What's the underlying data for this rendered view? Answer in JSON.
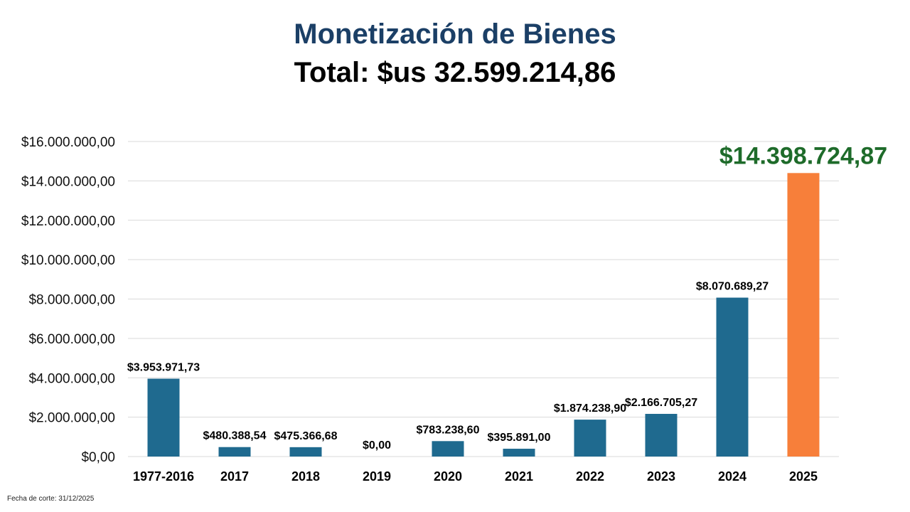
{
  "title": "Monetización de Bienes",
  "subtitle": "Total: $us 32.599.214,86",
  "footnote": "Fecha de corte: 31/12/2025",
  "chart_data": {
    "type": "bar",
    "categories": [
      "1977-2016",
      "2017",
      "2018",
      "2019",
      "2020",
      "2021",
      "2022",
      "2023",
      "2024",
      "2025"
    ],
    "values": [
      3953971.73,
      480388.54,
      475366.68,
      0,
      783238.6,
      395891.0,
      1874238.9,
      2166705.27,
      8070689.27,
      14398724.87
    ],
    "data_labels": [
      "$3.953.971,73",
      "$480.388,54",
      "$475.366,68",
      "$0,00",
      "$783.238,60",
      "$395.891,00",
      "$1.874.238,90",
      "$2.166.705,27",
      "$8.070.689,27",
      "$14.398.724,87"
    ],
    "ylim": [
      0,
      16000000
    ],
    "yticks": [
      0,
      2000000,
      4000000,
      6000000,
      8000000,
      10000000,
      12000000,
      14000000,
      16000000
    ],
    "ytick_labels": [
      "$0,00",
      "$2.000.000,00",
      "$4.000.000,00",
      "$6.000.000,00",
      "$8.000.000,00",
      "$10.000.000,00",
      "$12.000.000,00",
      "$14.000.000,00",
      "$16.000.000,00"
    ],
    "grid": true,
    "colors": {
      "bar": "#1f6a8f",
      "highlight_bar": "#f77f3a",
      "highlight_label": "#1e6b2a"
    },
    "highlight_index": 9
  }
}
